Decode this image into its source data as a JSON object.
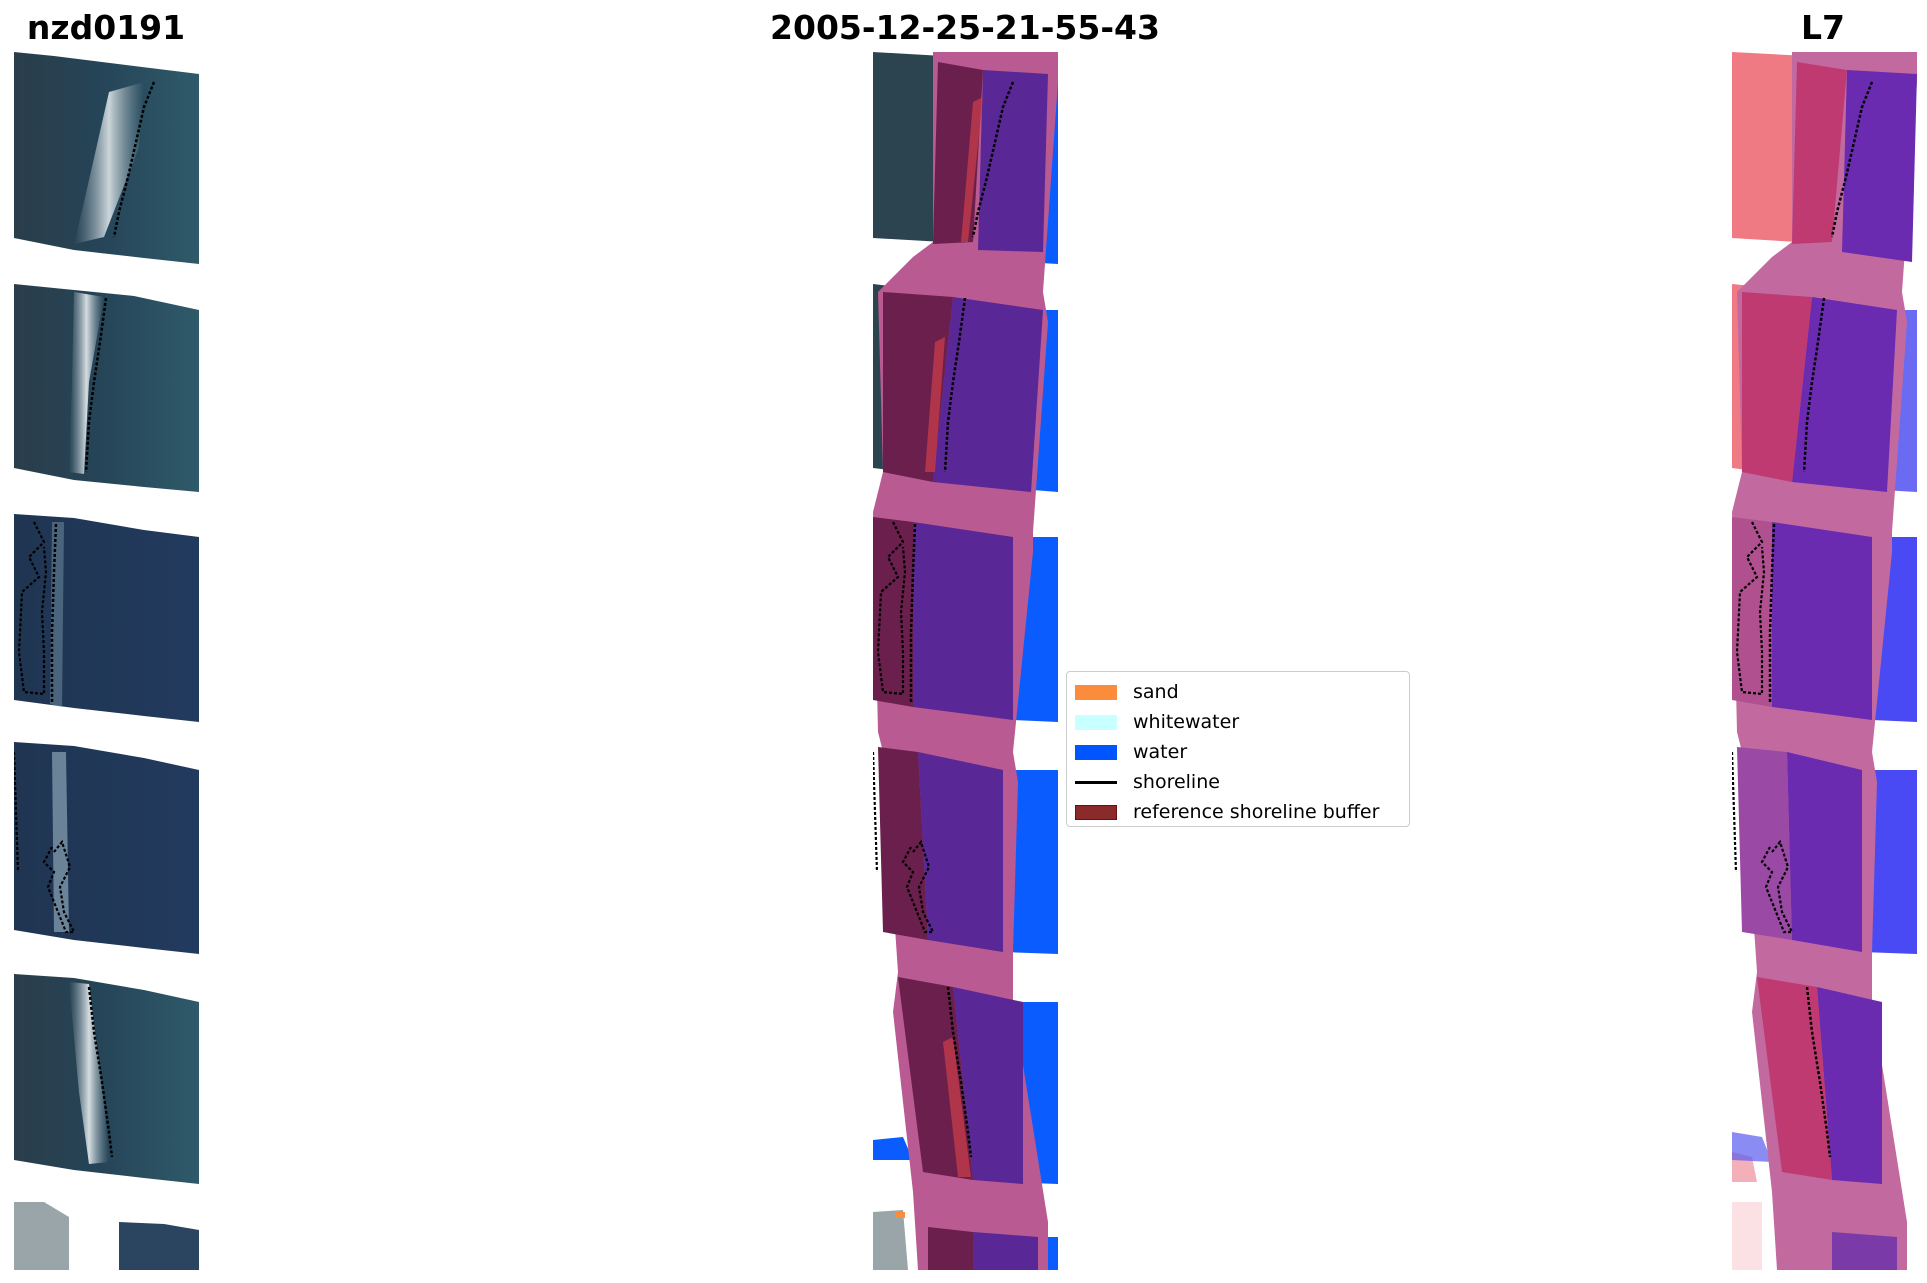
{
  "titles": {
    "left": "nzd0191",
    "center": "2005-12-25-21-55-43",
    "right": "L7"
  },
  "panels": [
    {
      "id": "rgb",
      "content": "satellite-rgb-image"
    },
    {
      "id": "classified",
      "content": "classified-image"
    },
    {
      "id": "index",
      "content": "index-image"
    }
  ],
  "legend": {
    "placement": "center",
    "items": [
      {
        "label": "sand",
        "kind": "patch",
        "color": "#fb8c3c"
      },
      {
        "label": "whitewater",
        "kind": "patch",
        "color": "#c8ffff"
      },
      {
        "label": "water",
        "kind": "patch",
        "color": "#0055ff"
      },
      {
        "label": "shoreline",
        "kind": "line",
        "color": "#000000"
      },
      {
        "label": "reference shoreline buffer",
        "kind": "patch",
        "color": "#8b2a2a",
        "edge": "#6b1010"
      }
    ]
  },
  "colors": {
    "ocean": "#233e63",
    "ocean_light": "#2f5a6e",
    "land_dark": "#2c3a44",
    "beach": "#d8e0e2",
    "buffer": "#b95a92",
    "water_class": "#0a5cff",
    "water_tinted": "#5a2796",
    "land_tinted": "#6a1f4c",
    "index_land": "#f07a84",
    "index_buffer": "#c03a72",
    "index_water": "#6a2bb0",
    "index_ocean": "#4a4af5",
    "shoreline": "#000000"
  }
}
